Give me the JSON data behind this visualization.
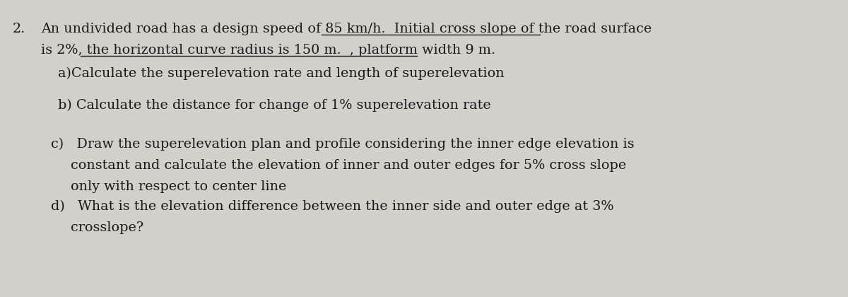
{
  "background_color": "#d3d0cb",
  "fig_width": 12.0,
  "fig_height": 4.2,
  "font_size": 13.8,
  "font_family": "serif",
  "text_color": "#1a1a1a",
  "number": "2.",
  "line1_plain": "An undivided road has a design speed of 85 km/h.  ",
  "line1_underlined": "Initial cross slope of the road surface",
  "line2_plain": "is 2%, ",
  "line2_underlined": "the horizontal curve radius is 150 m.  , platform width 9 m.",
  "item_a": "a)Calculate the superelevation rate and length of superelevation",
  "item_b": "b) Calculate the distance for change of 1% superelevation rate",
  "item_c1": "c)   Draw the superelevation plan and profile considering the inner edge elevation is",
  "item_c2": "constant and calculate the elevation of inner and outer edges for 5% cross slope",
  "item_c3": "only with respect to center line",
  "item_d1": "d)   What is the elevation difference between the inner side and outer edge at 3%",
  "item_d2": "crosslope?"
}
